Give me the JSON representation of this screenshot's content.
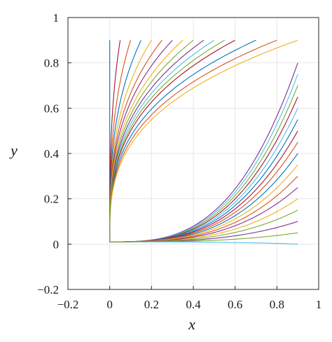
{
  "chart_data": {
    "type": "line",
    "title": "",
    "xlabel": "x",
    "ylabel": "y",
    "xlim": [
      -0.2,
      1
    ],
    "ylim": [
      -0.2,
      1
    ],
    "grid": true,
    "legend": "none",
    "x_ticks": [
      "−0.2",
      "0",
      "0.2",
      "0.4",
      "0.6",
      "0.8",
      "1"
    ],
    "x_tick_values": [
      -0.2,
      0,
      0.2,
      0.4,
      0.6,
      0.8,
      1
    ],
    "y_ticks": [
      "−0.2",
      "0",
      "0.2",
      "0.4",
      "0.6",
      "0.8",
      "1"
    ],
    "y_tick_values": [
      -0.2,
      0,
      0.2,
      0.4,
      0.6,
      0.8,
      1
    ],
    "series_family": {
      "description_of_shape": "curves start near (0, 0) and bend up to endpoints on x = 0.9 or y = 0.9",
      "curve_power": 3,
      "start": [
        0,
        0.01
      ],
      "endpoints_top_edge_x": [
        0,
        0.1,
        0.2,
        0.3,
        0.4,
        0.5,
        0.6,
        0.7,
        0.8,
        0.9
      ],
      "endpoints_right_edge_y": [
        0.8,
        0.7,
        0.6,
        0.5,
        0.4,
        0.3,
        0.2,
        0.1,
        0.05,
        0
      ],
      "extra_inner_endpoints": [
        [
          0.05,
          0.9
        ],
        [
          0.15,
          0.9
        ],
        [
          0.25,
          0.9
        ],
        [
          0.35,
          0.9
        ],
        [
          0.45,
          0.9
        ],
        [
          0.55,
          0.9
        ],
        [
          0.9,
          0.75
        ],
        [
          0.9,
          0.65
        ],
        [
          0.9,
          0.55
        ],
        [
          0.9,
          0.45
        ],
        [
          0.9,
          0.35
        ],
        [
          0.9,
          0.25
        ],
        [
          0.9,
          0.15
        ]
      ],
      "colors": [
        "#0072BD",
        "#D95319",
        "#EDB120",
        "#7E2F8E",
        "#77AC30",
        "#4DBEEE",
        "#A2142F"
      ]
    }
  }
}
